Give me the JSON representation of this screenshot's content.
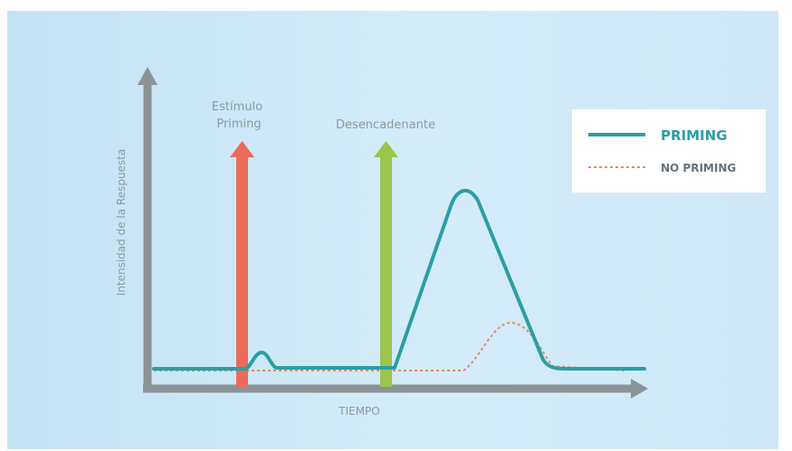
{
  "labels": {
    "stimulus_line1": "Estímulo",
    "stimulus_line2": "Priming",
    "trigger": "Desencadenante",
    "y_axis": "Intensidad de la Respuesta",
    "x_axis": "TIEMPO"
  },
  "legend": {
    "priming": "PRIMING",
    "no_priming": "NO PRIMING"
  },
  "colors": {
    "priming_line": "#2b9ea5",
    "no_priming_line": "#e8876a",
    "stimulus_arrow": "#ee6a58",
    "trigger_arrow": "#9cc54a",
    "axis": "#8c9397",
    "legend_priming_text": "#2b9ea5",
    "legend_no_priming_text": "#66727a"
  }
}
